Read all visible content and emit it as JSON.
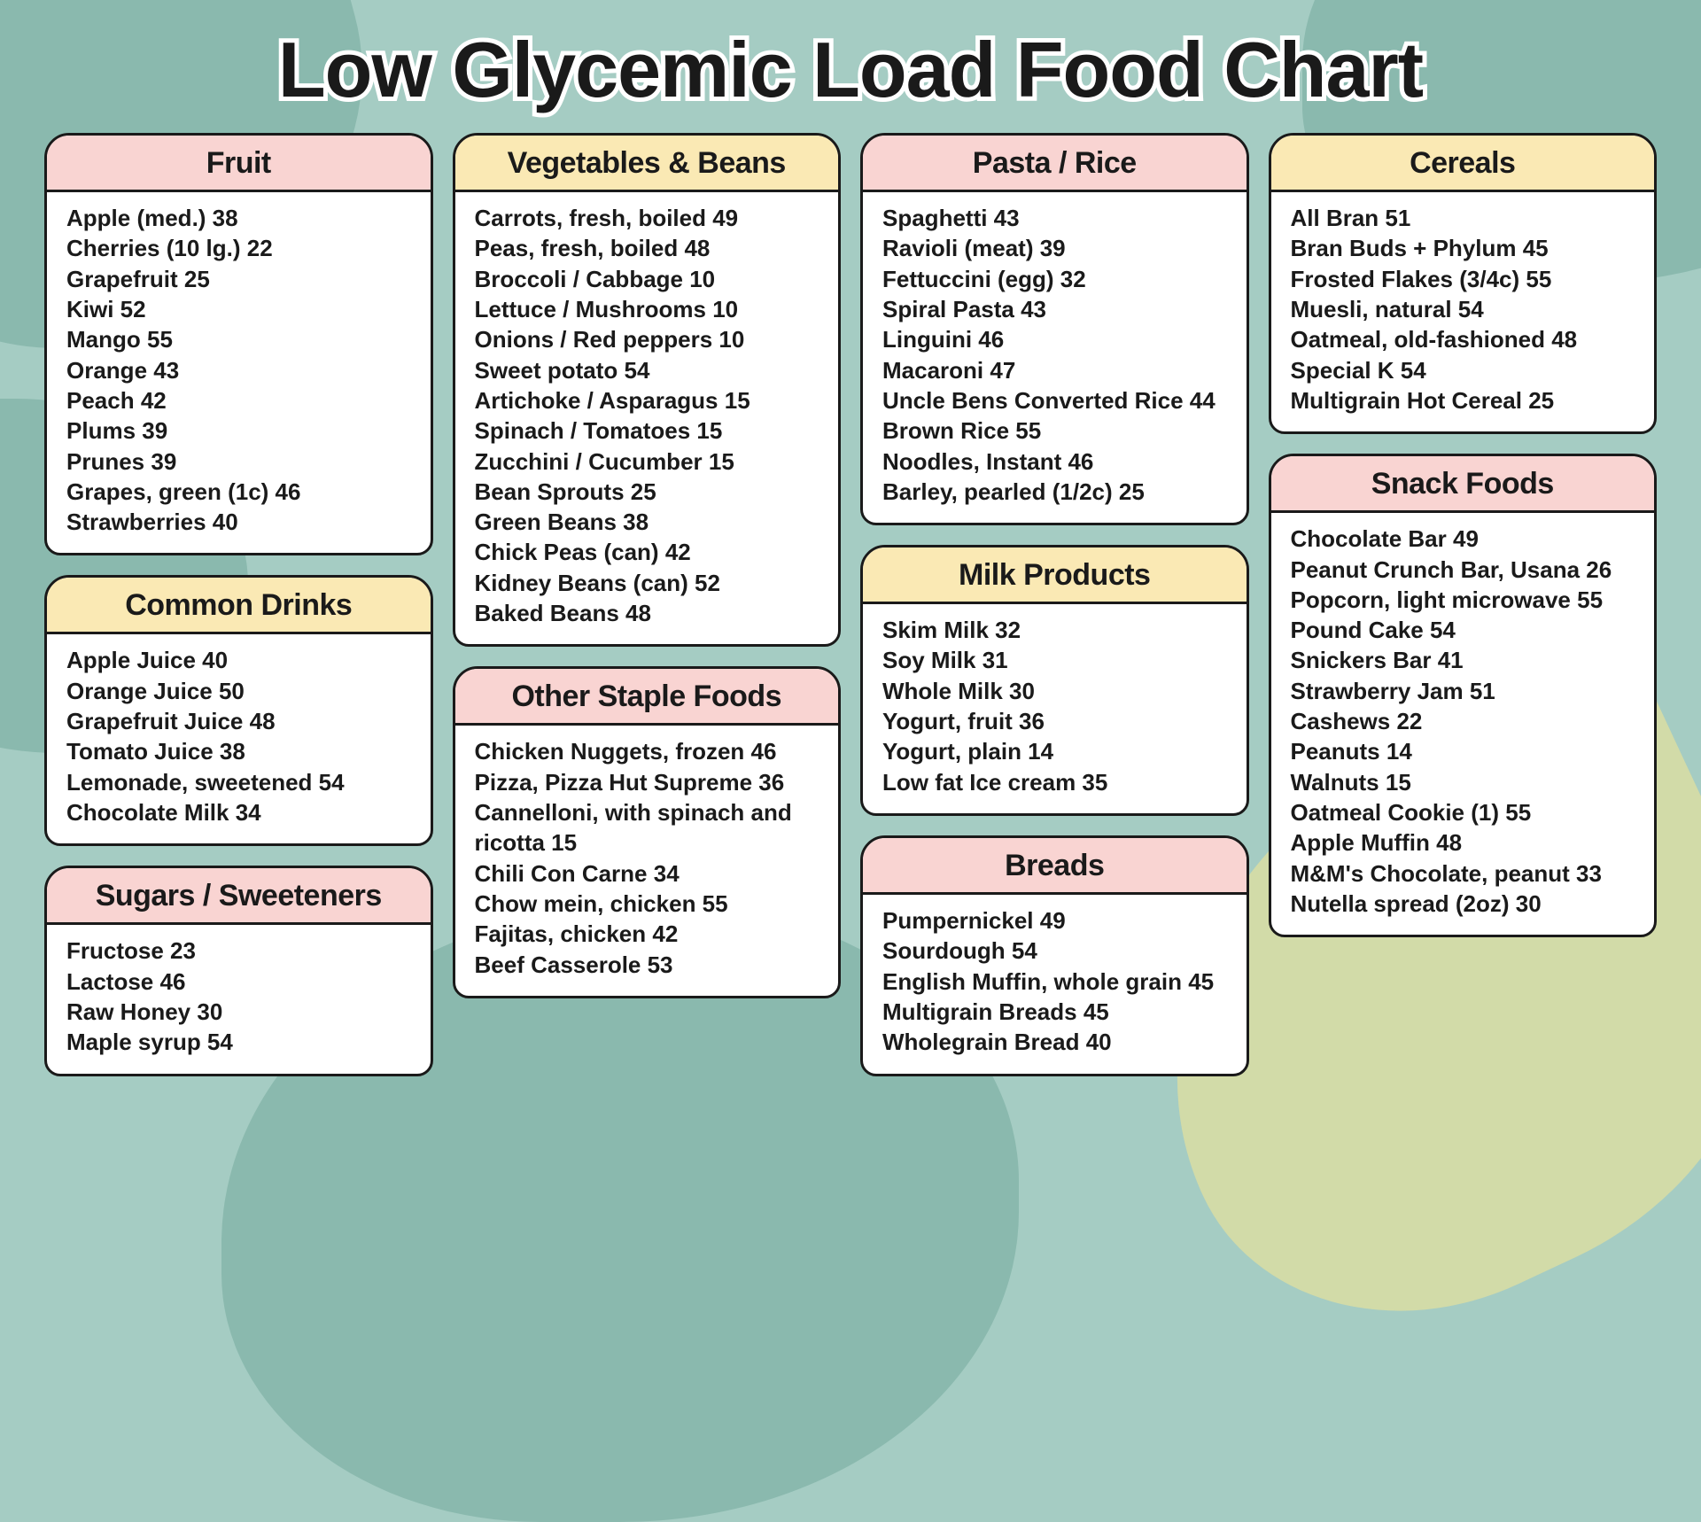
{
  "title": "Low Glycemic Load Food Chart",
  "styling": {
    "background_color": "#a5ccc3",
    "background_accent": "#8ab9ae",
    "leaf_color": "#d9dda3",
    "card_border": "#1a1a1a",
    "card_bg": "#ffffff",
    "header_pink": "#f9d4d2",
    "header_yellow": "#fae9b4",
    "title_fontsize": 88,
    "header_fontsize": 34,
    "item_fontsize": 26,
    "border_radius": 28,
    "border_width": 3
  },
  "columns": [
    [
      {
        "title": "Fruit",
        "color": "pink",
        "items": [
          "Apple (med.) 38",
          "Cherries (10 lg.) 22",
          "Grapefruit 25",
          "Kiwi 52",
          "Mango 55",
          "Orange 43",
          "Peach 42",
          "Plums 39",
          "Prunes 39",
          "Grapes, green (1c) 46",
          "Strawberries 40"
        ]
      },
      {
        "title": "Common Drinks",
        "color": "yellow",
        "items": [
          "Apple Juice 40",
          "Orange Juice 50",
          "Grapefruit Juice 48",
          "Tomato Juice 38",
          "Lemonade, sweetened 54",
          "Chocolate Milk 34"
        ]
      },
      {
        "title": "Sugars / Sweeteners",
        "color": "pink",
        "items": [
          "Fructose 23",
          "Lactose 46",
          "Raw Honey 30",
          "Maple syrup 54"
        ]
      }
    ],
    [
      {
        "title": "Vegetables & Beans",
        "color": "yellow",
        "items": [
          "Carrots, fresh, boiled 49",
          "Peas, fresh, boiled 48",
          "Broccoli / Cabbage 10",
          "Lettuce / Mushrooms 10",
          "Onions / Red peppers 10",
          "Sweet potato 54",
          "Artichoke / Asparagus 15",
          "Spinach / Tomatoes 15",
          "Zucchini / Cucumber 15",
          "Bean Sprouts 25",
          "Green Beans 38",
          "Chick Peas (can) 42",
          "Kidney Beans (can) 52",
          "Baked Beans 48"
        ]
      },
      {
        "title": "Other Staple Foods",
        "color": "pink",
        "items": [
          "Chicken Nuggets, frozen 46",
          "Pizza, Pizza Hut Supreme 36",
          "Cannelloni, with spinach and ricotta 15",
          "Chili Con Carne 34",
          "Chow mein, chicken 55",
          "Fajitas, chicken 42",
          "Beef Casserole 53"
        ]
      }
    ],
    [
      {
        "title": "Pasta / Rice",
        "color": "pink",
        "items": [
          "Spaghetti 43",
          "Ravioli (meat) 39",
          "Fettuccini (egg) 32",
          "Spiral Pasta 43",
          "Linguini 46",
          "Macaroni 47",
          "Uncle Bens Converted Rice 44",
          "Brown Rice 55",
          "Noodles, Instant 46",
          "Barley, pearled (1/2c) 25"
        ]
      },
      {
        "title": "Milk Products",
        "color": "yellow",
        "items": [
          "Skim Milk 32",
          "Soy Milk 31",
          "Whole Milk 30",
          "Yogurt, fruit 36",
          "Yogurt, plain 14",
          "Low fat Ice cream 35"
        ]
      },
      {
        "title": "Breads",
        "color": "pink",
        "items": [
          "Pumpernickel 49",
          "Sourdough 54",
          "English Muffin, whole grain 45",
          "Multigrain Breads 45",
          "Wholegrain Bread 40"
        ]
      }
    ],
    [
      {
        "title": "Cereals",
        "color": "yellow",
        "items": [
          "All Bran 51",
          "Bran Buds + Phylum 45",
          "Frosted Flakes (3/4c) 55",
          "Muesli, natural 54",
          "Oatmeal, old-fashioned 48",
          "Special K 54",
          "Multigrain Hot Cereal 25"
        ]
      },
      {
        "title": "Snack Foods",
        "color": "pink",
        "items": [
          "Chocolate Bar 49",
          "Peanut Crunch Bar, Usana 26",
          "Popcorn, light microwave 55",
          "Pound Cake 54",
          "Snickers Bar 41",
          "Strawberry Jam 51",
          "Cashews 22",
          "Peanuts 14",
          "Walnuts 15",
          "Oatmeal Cookie (1) 55",
          "Apple Muffin 48",
          "M&M's Chocolate, peanut 33",
          "Nutella spread (2oz) 30"
        ]
      }
    ]
  ]
}
